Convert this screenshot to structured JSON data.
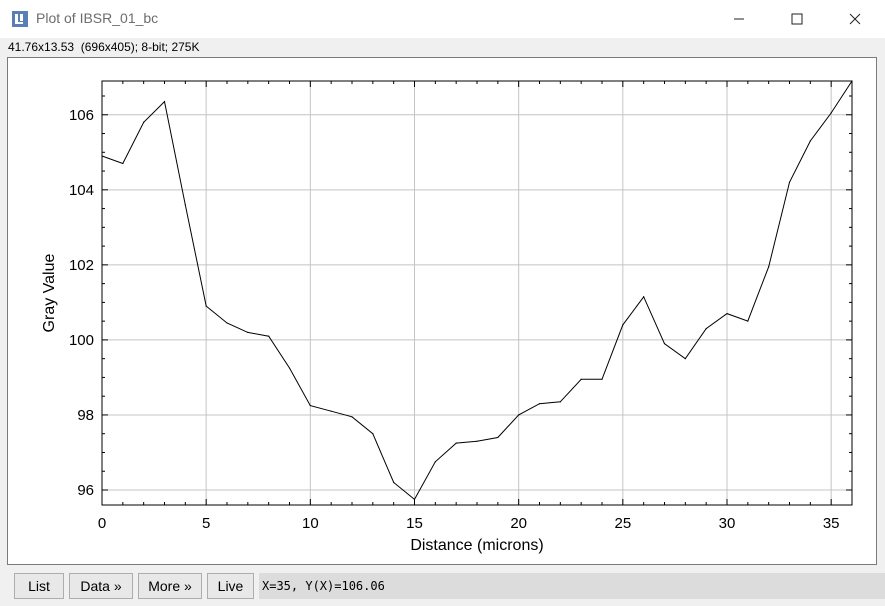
{
  "window": {
    "title": "Plot of IBSR_01_bc",
    "icon": "imagej-icon",
    "info_line": "41.76x13.53  (696x405); 8-bit; 275K"
  },
  "buttons": {
    "list": "List",
    "data": "Data »",
    "more": "More »",
    "live": "Live"
  },
  "status": {
    "coords": "X=35, Y(X)=106.06"
  },
  "chart_data": {
    "type": "line",
    "title": "",
    "xlabel": "Distance (microns)",
    "ylabel": "Gray Value",
    "xlim": [
      0,
      36
    ],
    "ylim": [
      95.6,
      106.9
    ],
    "xticks": [
      0,
      5,
      10,
      15,
      20,
      25,
      30,
      35
    ],
    "yticks": [
      96,
      98,
      100,
      102,
      104,
      106
    ],
    "grid": true,
    "line_color": "#000000",
    "series": [
      {
        "x": [
          0,
          1,
          2,
          3,
          4,
          5,
          6,
          7,
          8,
          9,
          10,
          11,
          12,
          13,
          14,
          15,
          16,
          17,
          18,
          19,
          20,
          21,
          22,
          23,
          24,
          25,
          26,
          27,
          28,
          29,
          30,
          31,
          32,
          33,
          34,
          35,
          36
        ],
        "values": [
          104.9,
          104.7,
          105.8,
          106.35,
          103.6,
          100.9,
          100.45,
          100.2,
          100.1,
          99.25,
          98.25,
          98.1,
          97.95,
          97.5,
          96.2,
          95.75,
          96.75,
          97.25,
          97.3,
          97.4,
          98.0,
          98.3,
          98.35,
          98.95,
          98.95,
          100.4,
          101.15,
          99.9,
          99.5,
          100.3,
          100.7,
          100.5,
          101.95,
          104.2,
          105.3,
          106.05,
          106.9
        ]
      }
    ]
  }
}
